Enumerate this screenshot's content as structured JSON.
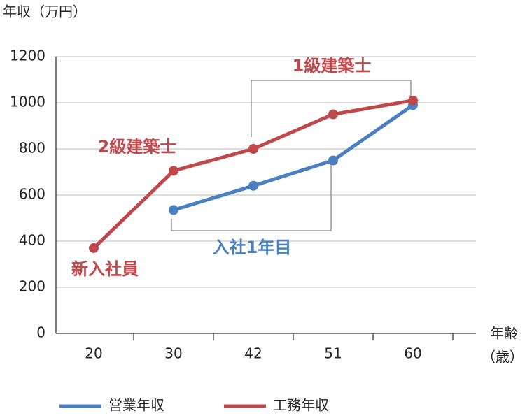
{
  "chart_data": {
    "type": "line",
    "ylabel": "年収（万円）",
    "xlabel": [
      "年齢",
      "（歳）"
    ],
    "categories": [
      "20",
      "30",
      "42",
      "51",
      "60"
    ],
    "series": [
      {
        "name": "営業年収",
        "color": "#4a7fc1",
        "values": [
          null,
          535,
          640,
          750,
          990
        ]
      },
      {
        "name": "工務年収",
        "color": "#c0474a",
        "values": [
          370,
          705,
          800,
          950,
          1010
        ]
      }
    ],
    "ylim": [
      0,
      1200
    ],
    "yticks": [
      0,
      200,
      400,
      600,
      800,
      1000,
      1200
    ],
    "grid": true,
    "annotations": [
      {
        "text": "新入社員",
        "color": "#c0474a"
      },
      {
        "text": "2級建築士",
        "color": "#c0474a"
      },
      {
        "text": "1級建築士",
        "color": "#c0474a"
      },
      {
        "text": "入社1年目",
        "color": "#4a7fc1"
      }
    ]
  }
}
